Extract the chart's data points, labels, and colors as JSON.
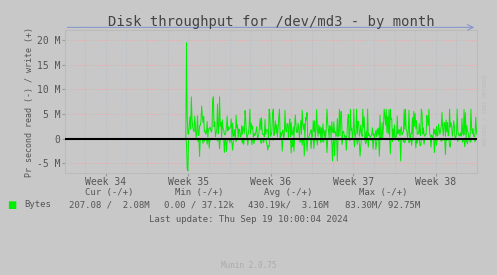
{
  "title": "Disk throughput for /dev/md3 - by month",
  "ylabel": "Pr second read (-) / write (+)",
  "background_color": "#C8C8C8",
  "plot_bg_color": "#C8C8C8",
  "outer_bg_color": "#C8C8C8",
  "grid_color_h": "#FF9999",
  "grid_color_v": "#AABBCC",
  "line_color": "#00EE00",
  "zero_line_color": "#000000",
  "spine_color": "#AAAAAA",
  "ylim": [
    -7000000,
    22000000
  ],
  "yticks": [
    -5000000,
    0,
    5000000,
    10000000,
    15000000,
    20000000
  ],
  "ytick_labels": [
    "-5 M",
    "0",
    "5 M",
    "10 M",
    "15 M",
    "20 M"
  ],
  "xtick_labels": [
    "Week 34",
    "Week 35",
    "Week 36",
    "Week 37",
    "Week 38"
  ],
  "xtick_positions": [
    0.1,
    0.3,
    0.5,
    0.7,
    0.9
  ],
  "legend_label": "Bytes",
  "cur": "207.08 /  2.08M",
  "min_val": "0.00 / 37.12k",
  "avg": "430.19k/  3.16M",
  "max_val": "83.30M/ 92.75M",
  "last_update": "Last update: Thu Sep 19 10:00:04 2024",
  "munin_version": "Munin 2.0.75",
  "watermark": "RRDTOOL / TOBI OETIKER",
  "title_fontsize": 10,
  "label_fontsize": 7,
  "tick_fontsize": 7,
  "stats_fontsize": 6.5
}
